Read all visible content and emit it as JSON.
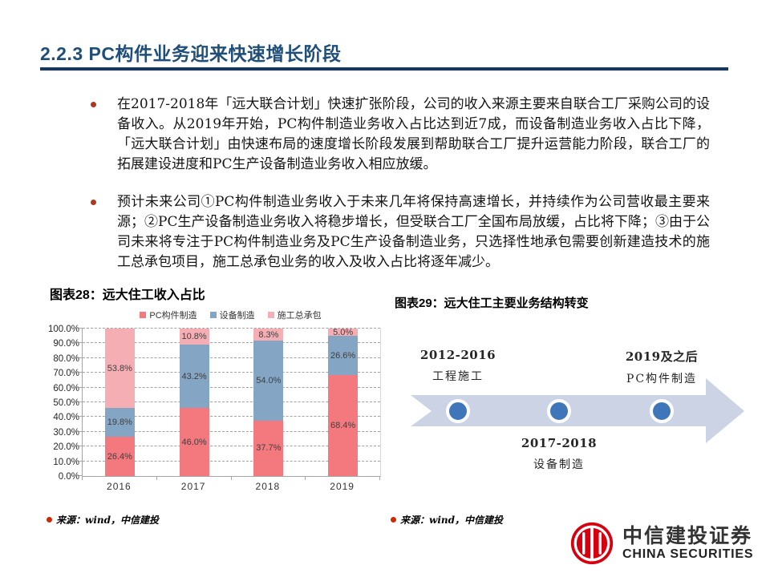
{
  "header": {
    "title": "2.2.3 PC构件业务迎来快速增长阶段"
  },
  "bullets": [
    "在2017-2018年「远大联合计划」快速扩张阶段，公司的收入来源主要来自联合工厂采购公司的设备收入。从2019年开始，PC构件制造业务收入占比达到近7成，而设备制造业务收入占比下降， 「远大联合计划」由快速布局的速度增长阶段发展到帮助联合工厂提升运营能力阶段，联合工厂的拓展建设进度和PC生产设备制造业务收入相应放缓。",
    "预计未来公司①PC构件制造业务收入于未来几年将保持高速增长，并持续作为公司营收最主要来源；②PC生产设备制造业务收入将稳步增长，但受联合工厂全国布局放缓，占比将下降；③由于公司未来将专注于PC构件制造业务及PC生产设备制造业务，只选择性地承包需要创新建造技术的施工总承包项目，施工总承包业务的收入及收入占比将逐年减少。"
  ],
  "figure28": {
    "title": "图表28：远大住工收入占比",
    "source": "来源：wind，中信建投"
  },
  "figure29": {
    "title": "图表29：远大住工主要业务结构转变",
    "source": "来源：wind，中信建投",
    "milestones": [
      {
        "period": "2012-2016",
        "label": "工程施工",
        "placement": "above"
      },
      {
        "period": "2017-2018",
        "label": "设备制造",
        "placement": "below"
      },
      {
        "period": "2019及之后",
        "label": "PC构件制造",
        "placement": "above"
      }
    ]
  },
  "chart_data": {
    "type": "bar",
    "stacked": true,
    "title": "图表28：远大住工收入占比",
    "categories": [
      "2016",
      "2017",
      "2018",
      "2019"
    ],
    "series": [
      {
        "name": "PC构件制造",
        "color": "#F4797F",
        "values": [
          26.4,
          46.0,
          37.7,
          68.4
        ]
      },
      {
        "name": "设备制造",
        "color": "#84A5C3",
        "values": [
          19.8,
          43.2,
          54.0,
          26.6
        ]
      },
      {
        "name": "施工总承包",
        "color": "#F6AEB5",
        "values": [
          53.8,
          10.8,
          8.3,
          5.0
        ]
      }
    ],
    "ylim": [
      0,
      100
    ],
    "ytick_labels": [
      "0.0%",
      "10.0%",
      "20.0%",
      "30.0%",
      "40.0%",
      "50.0%",
      "60.0%",
      "70.0%",
      "80.0%",
      "90.0%",
      "100.0%"
    ],
    "grid": "dashed-horizontal",
    "legend_position": "top",
    "label_format": "one_decimal_percent"
  },
  "logo": {
    "cn": "中信建投证券",
    "en": "CHINA SECURITIES"
  },
  "colors": {
    "title_navy": "#1F4E79",
    "rule_navy": "#17375D",
    "bullet_dot": "#AC3A21",
    "source_dot": "#CC2A00",
    "arrow_body": "#CBD3E5",
    "node_blue": "#3E76B9",
    "logo_red": "#D7000F"
  }
}
